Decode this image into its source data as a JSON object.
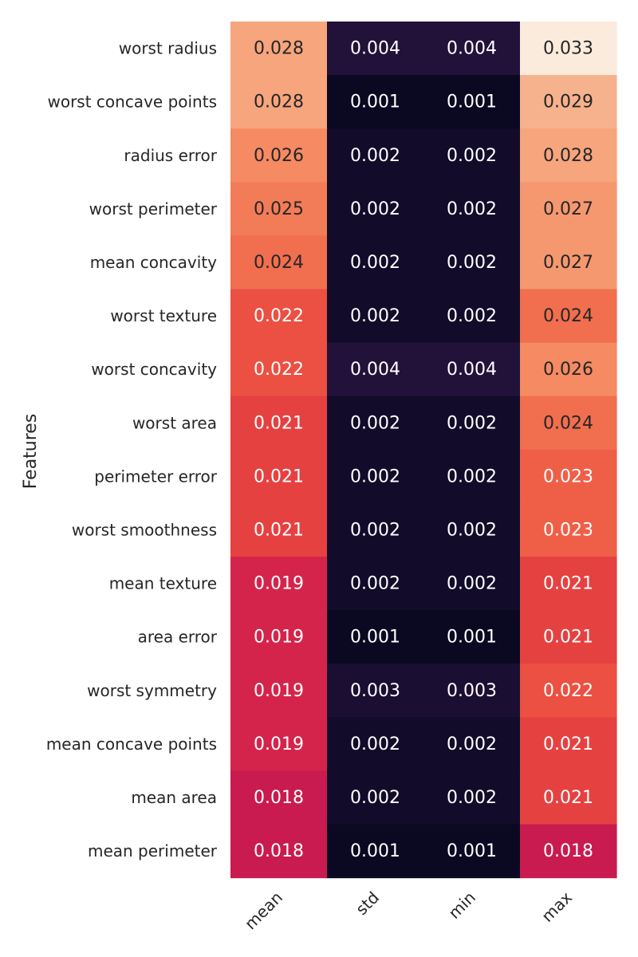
{
  "chart_data": {
    "type": "heatmap",
    "title": "",
    "xlabel": "",
    "ylabel": "Features",
    "columns": [
      "mean",
      "std",
      "min",
      "max"
    ],
    "rows": [
      "worst radius",
      "worst concave points",
      "radius error",
      "worst perimeter",
      "mean concavity",
      "worst texture",
      "worst concavity",
      "worst area",
      "perimeter error",
      "worst smoothness",
      "mean texture",
      "area error",
      "worst symmetry",
      "mean concave points",
      "mean area",
      "mean perimeter"
    ],
    "values": [
      [
        0.028,
        0.004,
        0.004,
        0.033
      ],
      [
        0.028,
        0.001,
        0.001,
        0.029
      ],
      [
        0.026,
        0.002,
        0.002,
        0.028
      ],
      [
        0.025,
        0.002,
        0.002,
        0.027
      ],
      [
        0.024,
        0.002,
        0.002,
        0.027
      ],
      [
        0.022,
        0.002,
        0.002,
        0.024
      ],
      [
        0.022,
        0.004,
        0.004,
        0.026
      ],
      [
        0.021,
        0.002,
        0.002,
        0.024
      ],
      [
        0.021,
        0.002,
        0.002,
        0.023
      ],
      [
        0.021,
        0.002,
        0.002,
        0.023
      ],
      [
        0.019,
        0.002,
        0.002,
        0.021
      ],
      [
        0.019,
        0.001,
        0.001,
        0.021
      ],
      [
        0.019,
        0.003,
        0.003,
        0.022
      ],
      [
        0.019,
        0.002,
        0.002,
        0.021
      ],
      [
        0.018,
        0.002,
        0.002,
        0.021
      ],
      [
        0.018,
        0.001,
        0.001,
        0.018
      ]
    ],
    "colormap": "rocket",
    "vmin": 0.0,
    "vmax": 0.033,
    "annotations": true,
    "colorbar": false,
    "grid": false
  }
}
